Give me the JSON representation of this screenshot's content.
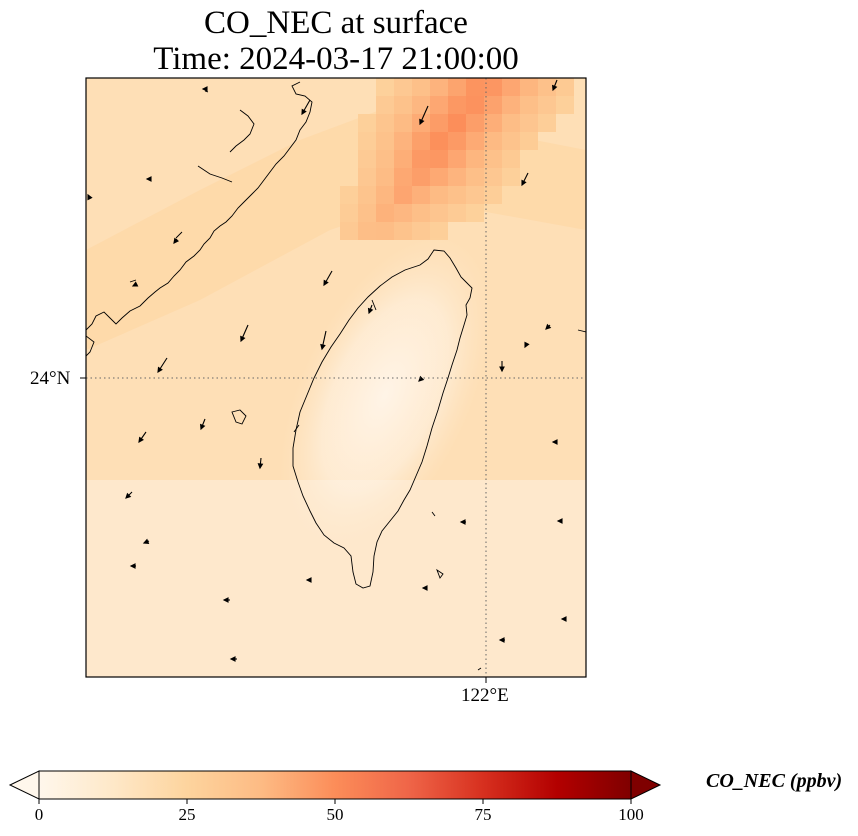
{
  "title": {
    "line1": "CO_NEC at surface",
    "line2": "Time: 2024-03-17 21:00:00"
  },
  "map": {
    "projection": "PlateCarree",
    "lon_range": [
      118.3,
      122.9
    ],
    "lat_range": [
      21.3,
      26.8
    ],
    "gridlines": {
      "style": "dotted",
      "latitudes": [
        24
      ],
      "longitudes": [
        122
      ]
    },
    "lat_tick_label": "24°N",
    "lon_tick_label": "122°E",
    "field": {
      "name": "CO_NEC",
      "units": "ppbv",
      "background_level": 18,
      "coastal_band_level": 24,
      "plume_level": 50,
      "island_interior_level": 5,
      "plume_location": "north-east corner, over the Taiwan Strait north of Taiwan"
    },
    "wind_vectors": "shown as black arrows",
    "colors": {
      "coastline": "#000000",
      "gridline": "#555555",
      "arrow": "#000000"
    }
  },
  "colorbar": {
    "colormap": "OrRd",
    "min": 0,
    "max": 100,
    "extend": "both",
    "ticks": [
      "0",
      "25",
      "50",
      "75",
      "100"
    ],
    "label": "CO_NEC (ppbv)",
    "stops": [
      "#fff7ec",
      "#fee8c8",
      "#fdd49e",
      "#fdbb84",
      "#fc8d59",
      "#ef6548",
      "#d7301f",
      "#b30000",
      "#7f0000"
    ]
  }
}
